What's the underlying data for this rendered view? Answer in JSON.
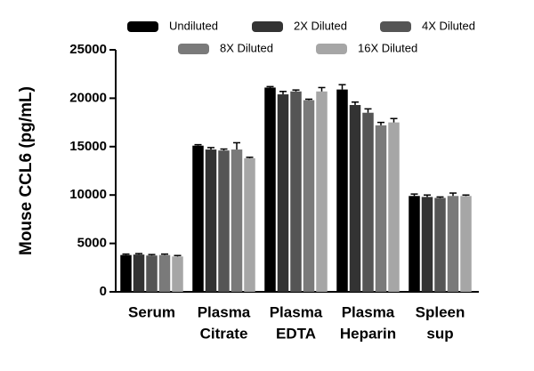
{
  "chart_data": {
    "type": "bar",
    "y_label": "Mouse CCL6 (pg/mL)",
    "categories": [
      [
        "Serum"
      ],
      [
        "Plasma",
        "Citrate"
      ],
      [
        "Plasma",
        "EDTA"
      ],
      [
        "Plasma",
        "Heparin"
      ],
      [
        "Spleen",
        "sup"
      ]
    ],
    "series": [
      {
        "name": "Undiluted",
        "color": "#000000",
        "values": [
          3800,
          15100,
          21100,
          20900,
          9900
        ],
        "errors": [
          100,
          100,
          100,
          500,
          200
        ]
      },
      {
        "name": "2X Diluted",
        "color": "#333333",
        "values": [
          3850,
          14700,
          20400,
          19300,
          9800
        ],
        "errors": [
          100,
          200,
          300,
          300,
          200
        ]
      },
      {
        "name": "4X Diluted",
        "color": "#555555",
        "values": [
          3750,
          14600,
          20700,
          18500,
          9700
        ],
        "errors": [
          100,
          150,
          150,
          400,
          100
        ]
      },
      {
        "name": "8X Diluted",
        "color": "#7a7a7a",
        "values": [
          3800,
          14700,
          19800,
          17200,
          9900
        ],
        "errors": [
          100,
          700,
          100,
          300,
          300
        ]
      },
      {
        "name": "16X Diluted",
        "color": "#a6a6a6",
        "values": [
          3650,
          13800,
          20700,
          17500,
          9900
        ],
        "errors": [
          100,
          100,
          400,
          400,
          100
        ]
      }
    ],
    "ylim": [
      0,
      25000
    ],
    "yticks": [
      0,
      5000,
      10000,
      15000,
      20000,
      25000
    ]
  }
}
